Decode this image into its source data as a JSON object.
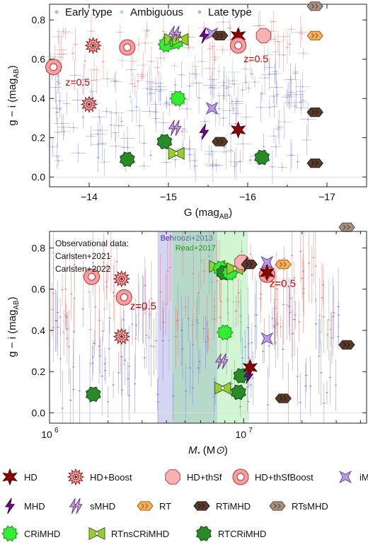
{
  "chart_data": [
    {
      "type": "scatter",
      "xlabel": "G (mag",
      "xlabel_sub": "AB",
      "xlabel_end": ")",
      "ylabel": "g − i (mag",
      "ylabel_sub": "AB",
      "ylabel_end": ")",
      "xlim": [
        -13.5,
        -17.5
      ],
      "ylim": [
        -0.05,
        0.88
      ],
      "xticks": [
        -14,
        -15,
        -16,
        -17
      ],
      "xtick_labels": [
        "−14",
        "−15",
        "−16",
        "−17"
      ],
      "yticks": [
        0.0,
        0.2,
        0.4,
        0.6,
        0.8
      ],
      "ytick_labels": [
        "0.0",
        "0.2",
        "0.4",
        "0.6",
        "0.8"
      ],
      "obs_legend": [
        {
          "label": "Early type",
          "color": "#e8a5a5"
        },
        {
          "label": "Ambiguous",
          "color": "#a9e0bf"
        },
        {
          "label": "Late type",
          "color": "#b0b0e6"
        }
      ],
      "annotations": [
        {
          "text": "z=0.5",
          "x": -13.7,
          "y": 0.465,
          "color": "#cc0000"
        },
        {
          "text": "z=0.5",
          "x": -15.95,
          "y": 0.585,
          "color": "#cc0000"
        }
      ],
      "points": [
        {
          "model": "HD+Boost",
          "x": -13.55,
          "y": 0.56
        },
        {
          "model": "HD+Boost",
          "x": -14.05,
          "y": 0.67
        },
        {
          "model": "HD+thSf",
          "x": -14.48,
          "y": 0.66
        },
        {
          "model": "HD+Boost",
          "x": -14.0,
          "y": 0.37
        },
        {
          "model": "HD+Boost",
          "x": -13.55,
          "y": 0.56
        },
        {
          "model": "HD+thSfBoost",
          "x": -14.48,
          "y": 0.66
        },
        {
          "model": "HD+thSfBoost",
          "x": -13.55,
          "y": 0.56
        },
        {
          "model": "RTCRiMHD",
          "x": -14.48,
          "y": 0.09
        },
        {
          "model": "CRiMHD",
          "x": -14.97,
          "y": 0.675
        },
        {
          "model": "RTnsCRiMHD",
          "x": -15.05,
          "y": 0.7
        },
        {
          "model": "CRiMHD",
          "x": -15.1,
          "y": 0.69
        },
        {
          "model": "RTnsCRiMHD",
          "x": -15.15,
          "y": 0.7
        },
        {
          "model": "sMHD",
          "x": -15.08,
          "y": 0.73
        },
        {
          "model": "CRiMHD",
          "x": -15.12,
          "y": 0.4
        },
        {
          "model": "sMHD",
          "x": -15.08,
          "y": 0.25
        },
        {
          "model": "RTCRiMHD",
          "x": -14.95,
          "y": 0.18
        },
        {
          "model": "RTnsCRiMHD",
          "x": -15.1,
          "y": 0.12
        },
        {
          "model": "MHD",
          "x": -15.45,
          "y": 0.72
        },
        {
          "model": "iMHD",
          "x": -15.55,
          "y": 0.73
        },
        {
          "model": "RTiMHD",
          "x": -15.65,
          "y": 0.72
        },
        {
          "model": "iMHD",
          "x": -15.55,
          "y": 0.35
        },
        {
          "model": "MHD",
          "x": -15.45,
          "y": 0.23
        },
        {
          "model": "RTiMHD",
          "x": -15.65,
          "y": 0.18
        },
        {
          "model": "HD",
          "x": -15.88,
          "y": 0.72
        },
        {
          "model": "HD+thSfBoost",
          "x": -15.88,
          "y": 0.67
        },
        {
          "model": "HD+thSf",
          "x": -16.2,
          "y": 0.72
        },
        {
          "model": "HD",
          "x": -15.88,
          "y": 0.24
        },
        {
          "model": "RTCRiMHD",
          "x": -16.18,
          "y": 0.1
        },
        {
          "model": "RTsMHD",
          "x": -16.85,
          "y": 0.87
        },
        {
          "model": "RT",
          "x": -16.85,
          "y": 0.72
        },
        {
          "model": "RTiMHD",
          "x": -16.85,
          "y": 0.33
        },
        {
          "model": "RTiMHD",
          "x": -16.85,
          "y": 0.07
        }
      ]
    },
    {
      "type": "scatter",
      "xlabel": "M",
      "xlabel_sub": "*",
      "xlabel_end": " (M",
      "xlabel_sun": "⊙",
      "xlabel_close": ")",
      "ylabel": "g − i (mag",
      "ylabel_sub": "AB",
      "ylabel_end": ")",
      "xscale": "log",
      "xlim": [
        1000000,
        43000000
      ],
      "ylim": [
        -0.05,
        0.88
      ],
      "xticks": [
        1000000,
        10000000
      ],
      "xtick_labels": [
        "10",
        "10"
      ],
      "xtick_exps": [
        "6",
        "7"
      ],
      "yticks": [
        0.0,
        0.2,
        0.4,
        0.6,
        0.8
      ],
      "ytick_labels": [
        "0.0",
        "0.2",
        "0.4",
        "0.6",
        "0.8"
      ],
      "obs_title": "Observational data:",
      "obs_refs": [
        "Carlsten+2021",
        "Carlsten+2022"
      ],
      "bands": [
        {
          "label": "Behroozi+2013",
          "x0": 3600000,
          "x1": 7300000,
          "color": "#6f6fd8",
          "opacity": 0.3
        },
        {
          "label": "Read+2017",
          "x0": 4300000,
          "x1": 10500000,
          "color": "#7fe27f",
          "opacity": 0.35
        }
      ],
      "annotations": [
        {
          "text": "z=0.5",
          "x": 2600000,
          "y": 0.5,
          "color": "#cc0000"
        },
        {
          "text": "z=0.5",
          "x": 13600000,
          "y": 0.61,
          "color": "#cc0000"
        }
      ],
      "points": [
        {
          "model": "HD+thSfBoost",
          "x": 1650000,
          "y": 0.66
        },
        {
          "model": "HD+Boost",
          "x": 2350000,
          "y": 0.65
        },
        {
          "model": "HD+Boost",
          "x": 2350000,
          "y": 0.37
        },
        {
          "model": "HD+thSfBoost",
          "x": 2420000,
          "y": 0.56
        },
        {
          "model": "RTCRiMHD",
          "x": 1680000,
          "y": 0.09
        },
        {
          "model": "RTnsCRiMHD",
          "x": 7300000,
          "y": 0.71
        },
        {
          "model": "CRiMHD",
          "x": 7600000,
          "y": 0.7
        },
        {
          "model": "RTCRiMHD",
          "x": 7900000,
          "y": 0.68
        },
        {
          "model": "CRiMHD",
          "x": 8500000,
          "y": 0.68
        },
        {
          "model": "RTnsCRiMHD",
          "x": 9000000,
          "y": 0.7
        },
        {
          "model": "CRiMHD",
          "x": 8000000,
          "y": 0.39
        },
        {
          "model": "sMHD",
          "x": 7700000,
          "y": 0.25
        },
        {
          "model": "RTnsCRiMHD",
          "x": 7800000,
          "y": 0.12
        },
        {
          "model": "RTCRiMHD",
          "x": 9400000,
          "y": 0.1
        },
        {
          "model": "RTCRiMHD",
          "x": 9700000,
          "y": 0.18
        },
        {
          "model": "MHD",
          "x": 10600000,
          "y": 0.18
        },
        {
          "model": "HD",
          "x": 10800000,
          "y": 0.22
        },
        {
          "model": "HD+thSf",
          "x": 9800000,
          "y": 0.73
        },
        {
          "model": "MHD",
          "x": 10300000,
          "y": 0.72
        },
        {
          "model": "RTiMHD",
          "x": 10700000,
          "y": 0.72
        },
        {
          "model": "iMHD",
          "x": 13200000,
          "y": 0.73
        },
        {
          "model": "HD+thSfBoost",
          "x": 13200000,
          "y": 0.67
        },
        {
          "model": "HD",
          "x": 13200000,
          "y": 0.68
        },
        {
          "model": "iMHD",
          "x": 13200000,
          "y": 0.36
        },
        {
          "model": "RT",
          "x": 16000000,
          "y": 0.72
        },
        {
          "model": "RTiMHD",
          "x": 16000000,
          "y": 0.07
        },
        {
          "model": "RTsMHD",
          "x": 34000000,
          "y": 0.9
        },
        {
          "model": "RTiMHD",
          "x": 34000000,
          "y": 0.33
        }
      ]
    }
  ],
  "legend": {
    "items": [
      {
        "label": "HD",
        "model": "HD"
      },
      {
        "label": "HD+Boost",
        "model": "HD+Boost"
      },
      {
        "label": "HD+thSf",
        "model": "HD+thSf"
      },
      {
        "label": "HD+thSfBoost",
        "model": "HD+thSfBoost"
      },
      {
        "label": "iMHD",
        "model": "iMHD"
      },
      {
        "label": "MHD",
        "model": "MHD"
      },
      {
        "label": "sMHD",
        "model": "sMHD"
      },
      {
        "label": "RT",
        "model": "RT"
      },
      {
        "label": "RTiMHD",
        "model": "RTiMHD"
      },
      {
        "label": "RTsMHD",
        "model": "RTsMHD"
      },
      {
        "label": "CRiMHD",
        "model": "CRiMHD"
      },
      {
        "label": "RTnsCRiMHD",
        "model": "RTnsCRiMHD"
      },
      {
        "label": "RTCRiMHD",
        "model": "RTCRiMHD"
      }
    ]
  },
  "styles": {
    "HD": {
      "shape": "star6",
      "fill": "#8b0000",
      "stroke": "#4a0000"
    },
    "HD+Boost": {
      "shape": "sunburst",
      "fill": "#f4a0a0",
      "stroke": "#8b1a1a"
    },
    "HD+thSf": {
      "shape": "octagon",
      "fill": "#f7b3b3",
      "stroke": "#c04040"
    },
    "HD+thSfBoost": {
      "shape": "ring",
      "fill": "#f4a0a0",
      "stroke": "#c03030"
    },
    "iMHD": {
      "shape": "star4",
      "fill": "#b89ae6",
      "stroke": "#6a4a99"
    },
    "MHD": {
      "shape": "bolt",
      "fill": "#6a0d8a",
      "stroke": "#3a0050"
    },
    "sMHD": {
      "shape": "bolt2",
      "fill": "#c6a0d8",
      "stroke": "#6a3a88"
    },
    "RT": {
      "shape": "arrows",
      "fill": "#f5b060",
      "stroke": "#a0601a"
    },
    "RTiMHD": {
      "shape": "arrows",
      "fill": "#5a3a2a",
      "stroke": "#2a1a10"
    },
    "RTsMHD": {
      "shape": "arrows",
      "fill": "#a89080",
      "stroke": "#5a4a40"
    },
    "CRiMHD": {
      "shape": "splat",
      "fill": "#33ee33",
      "stroke": "#1a8a1a"
    },
    "RTnsCRiMHD": {
      "shape": "bowtie",
      "fill": "#9acd32",
      "stroke": "#3a6a10"
    },
    "RTCRiMHD": {
      "shape": "spiky",
      "fill": "#2a8a2a",
      "stroke": "#0d4a0d"
    }
  }
}
